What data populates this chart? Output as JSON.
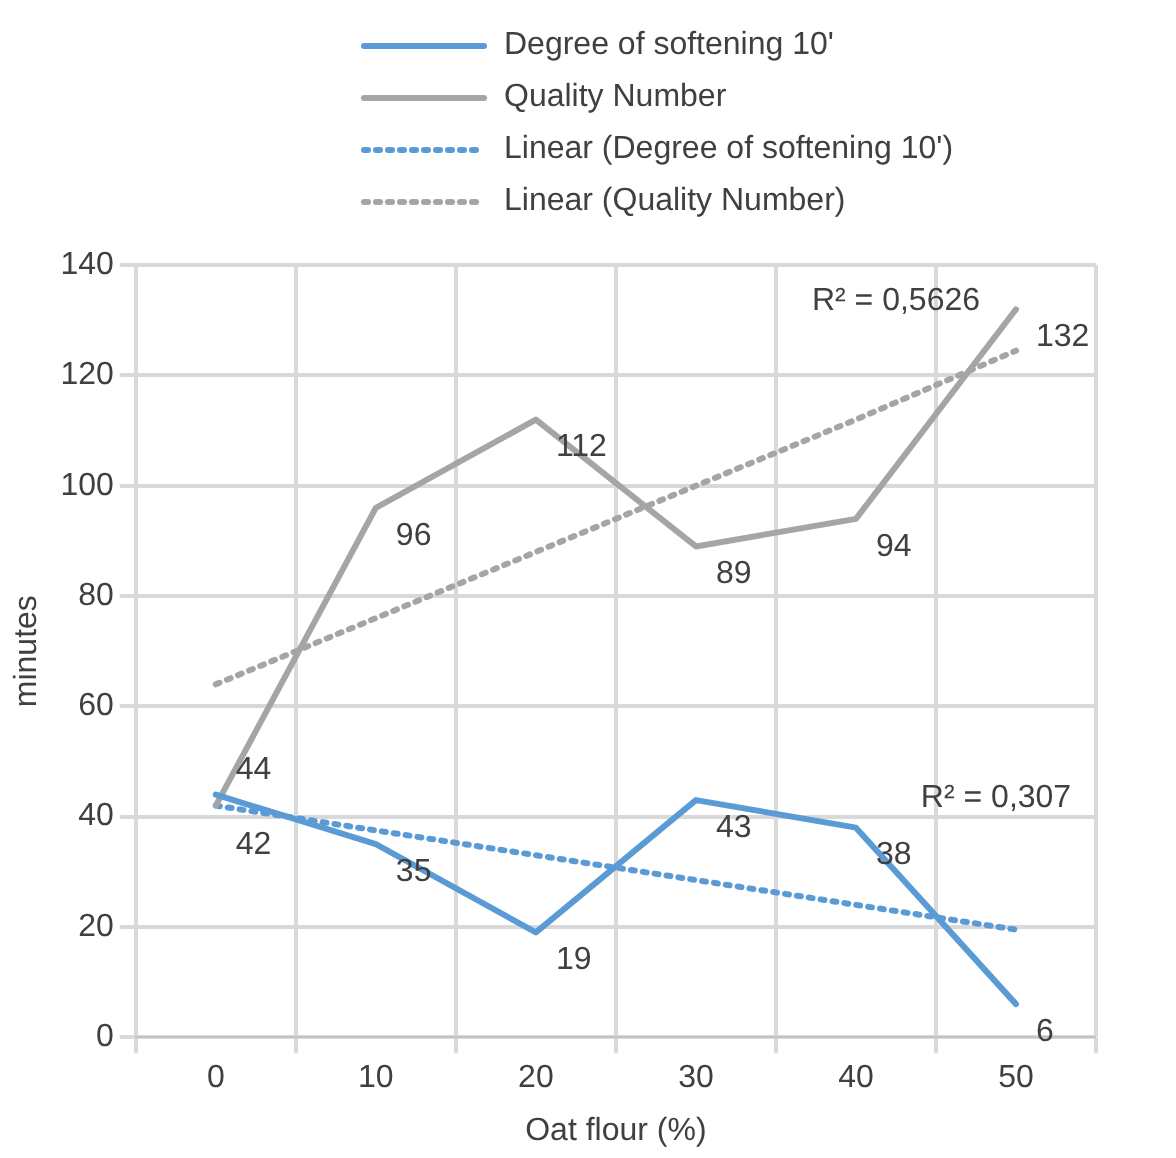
{
  "chart_data": {
    "type": "line",
    "xlabel": "Oat flour (%)",
    "ylabel": "minutes",
    "categories": [
      "0",
      "10",
      "20",
      "30",
      "40",
      "50"
    ],
    "series": [
      {
        "name": "Degree of softening 10'",
        "color": "#5b9bd5",
        "values": [
          44,
          35,
          19,
          43,
          38,
          6
        ],
        "value_labels": [
          "44",
          "35",
          "19",
          "43",
          "38",
          "6"
        ]
      },
      {
        "name": "Quality Number",
        "color": "#a5a5a5",
        "values": [
          42,
          96,
          112,
          89,
          94,
          132
        ],
        "value_labels": [
          "42",
          "96",
          "112",
          "89",
          "94",
          "132"
        ]
      },
      {
        "name": "Linear (Degree of softening 10')",
        "color": "#5b9bd5",
        "values": [
          42,
          37.5,
          33,
          28.5,
          24,
          19.5
        ],
        "line_style": "dotted"
      },
      {
        "name": "Linear (Quality Number)",
        "color": "#a5a5a5",
        "values": [
          64,
          76,
          88,
          100,
          112,
          124.5
        ],
        "line_style": "dotted"
      }
    ],
    "ylim": [
      0,
      140
    ],
    "yticks": [
      0,
      20,
      40,
      60,
      80,
      100,
      120,
      140
    ],
    "grid": true,
    "legend": "top",
    "marker": "none",
    "line_style": "solid",
    "annotations": [
      "R² = 0,5626",
      "R² = 0,307"
    ]
  }
}
